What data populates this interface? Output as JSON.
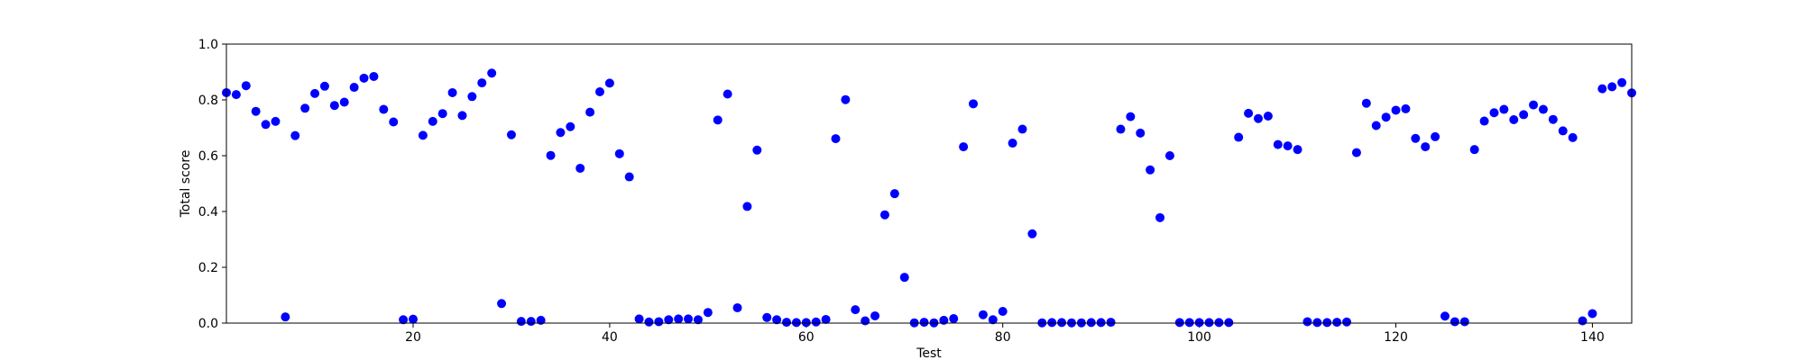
{
  "chart_data": {
    "type": "scatter",
    "title": "",
    "xlabel": "Test",
    "ylabel": "Total score",
    "xlim": [
      1,
      144
    ],
    "ylim": [
      0.0,
      1.0
    ],
    "xticks": [
      20,
      40,
      60,
      80,
      100,
      120,
      140
    ],
    "xtick_labels": [
      "20",
      "40",
      "60",
      "80",
      "100",
      "120",
      "140"
    ],
    "yticks": [
      0.0,
      0.2,
      0.4,
      0.6,
      0.8,
      1.0
    ],
    "ytick_labels": [
      "0.0",
      "0.2",
      "0.4",
      "0.6",
      "0.8",
      "1.0"
    ],
    "grid": false,
    "marker_color": "#0000ff",
    "points": [
      [
        1,
        0.826
      ],
      [
        2,
        0.819
      ],
      [
        3,
        0.851
      ],
      [
        4,
        0.759
      ],
      [
        5,
        0.712
      ],
      [
        6,
        0.723
      ],
      [
        7,
        0.022
      ],
      [
        8,
        0.672
      ],
      [
        9,
        0.77
      ],
      [
        10,
        0.823
      ],
      [
        11,
        0.849
      ],
      [
        12,
        0.78
      ],
      [
        13,
        0.792
      ],
      [
        14,
        0.845
      ],
      [
        15,
        0.878
      ],
      [
        16,
        0.884
      ],
      [
        17,
        0.766
      ],
      [
        18,
        0.721
      ],
      [
        19,
        0.012
      ],
      [
        20,
        0.014
      ],
      [
        21,
        0.673
      ],
      [
        22,
        0.723
      ],
      [
        23,
        0.751
      ],
      [
        24,
        0.826
      ],
      [
        25,
        0.744
      ],
      [
        26,
        0.812
      ],
      [
        27,
        0.861
      ],
      [
        28,
        0.896
      ],
      [
        29,
        0.07
      ],
      [
        30,
        0.675
      ],
      [
        31,
        0.006
      ],
      [
        32,
        0.006
      ],
      [
        33,
        0.01
      ],
      [
        34,
        0.601
      ],
      [
        35,
        0.683
      ],
      [
        36,
        0.704
      ],
      [
        37,
        0.555
      ],
      [
        38,
        0.756
      ],
      [
        39,
        0.829
      ],
      [
        40,
        0.86
      ],
      [
        41,
        0.607
      ],
      [
        42,
        0.524
      ],
      [
        43,
        0.015
      ],
      [
        44,
        0.004
      ],
      [
        45,
        0.005
      ],
      [
        46,
        0.012
      ],
      [
        47,
        0.015
      ],
      [
        48,
        0.015
      ],
      [
        49,
        0.012
      ],
      [
        50,
        0.038
      ],
      [
        51,
        0.728
      ],
      [
        52,
        0.821
      ],
      [
        53,
        0.055
      ],
      [
        54,
        0.418
      ],
      [
        55,
        0.62
      ],
      [
        56,
        0.02
      ],
      [
        57,
        0.012
      ],
      [
        58,
        0.003
      ],
      [
        59,
        0.002
      ],
      [
        60,
        0.002
      ],
      [
        61,
        0.004
      ],
      [
        62,
        0.013
      ],
      [
        63,
        0.661
      ],
      [
        64,
        0.801
      ],
      [
        65,
        0.048
      ],
      [
        66,
        0.008
      ],
      [
        67,
        0.026
      ],
      [
        68,
        0.388
      ],
      [
        69,
        0.464
      ],
      [
        70,
        0.164
      ],
      [
        71,
        0.001
      ],
      [
        72,
        0.003
      ],
      [
        73,
        0.001
      ],
      [
        74,
        0.01
      ],
      [
        75,
        0.016
      ],
      [
        76,
        0.632
      ],
      [
        77,
        0.786
      ],
      [
        78,
        0.03
      ],
      [
        79,
        0.012
      ],
      [
        80,
        0.042
      ],
      [
        81,
        0.645
      ],
      [
        82,
        0.695
      ],
      [
        83,
        0.32
      ],
      [
        84,
        0.001
      ],
      [
        85,
        0.002
      ],
      [
        86,
        0.002
      ],
      [
        87,
        0.001
      ],
      [
        88,
        0.001
      ],
      [
        89,
        0.002
      ],
      [
        90,
        0.002
      ],
      [
        91,
        0.003
      ],
      [
        92,
        0.695
      ],
      [
        93,
        0.74
      ],
      [
        94,
        0.681
      ],
      [
        95,
        0.549
      ],
      [
        96,
        0.378
      ],
      [
        97,
        0.6
      ],
      [
        98,
        0.002
      ],
      [
        99,
        0.002
      ],
      [
        100,
        0.002
      ],
      [
        101,
        0.002
      ],
      [
        102,
        0.002
      ],
      [
        103,
        0.002
      ],
      [
        104,
        0.666
      ],
      [
        105,
        0.752
      ],
      [
        106,
        0.733
      ],
      [
        107,
        0.742
      ],
      [
        108,
        0.64
      ],
      [
        109,
        0.635
      ],
      [
        110,
        0.622
      ],
      [
        111,
        0.005
      ],
      [
        112,
        0.002
      ],
      [
        113,
        0.002
      ],
      [
        114,
        0.003
      ],
      [
        115,
        0.004
      ],
      [
        116,
        0.611
      ],
      [
        117,
        0.788
      ],
      [
        118,
        0.708
      ],
      [
        119,
        0.738
      ],
      [
        120,
        0.763
      ],
      [
        121,
        0.768
      ],
      [
        122,
        0.662
      ],
      [
        123,
        0.632
      ],
      [
        124,
        0.668
      ],
      [
        125,
        0.025
      ],
      [
        126,
        0.005
      ],
      [
        127,
        0.005
      ],
      [
        128,
        0.622
      ],
      [
        129,
        0.724
      ],
      [
        130,
        0.754
      ],
      [
        131,
        0.766
      ],
      [
        132,
        0.729
      ],
      [
        133,
        0.747
      ],
      [
        134,
        0.782
      ],
      [
        135,
        0.766
      ],
      [
        136,
        0.73
      ],
      [
        137,
        0.689
      ],
      [
        138,
        0.665
      ],
      [
        139,
        0.008
      ],
      [
        140,
        0.034
      ],
      [
        141,
        0.84
      ],
      [
        142,
        0.847
      ],
      [
        143,
        0.862
      ],
      [
        144,
        0.825
      ]
    ]
  }
}
